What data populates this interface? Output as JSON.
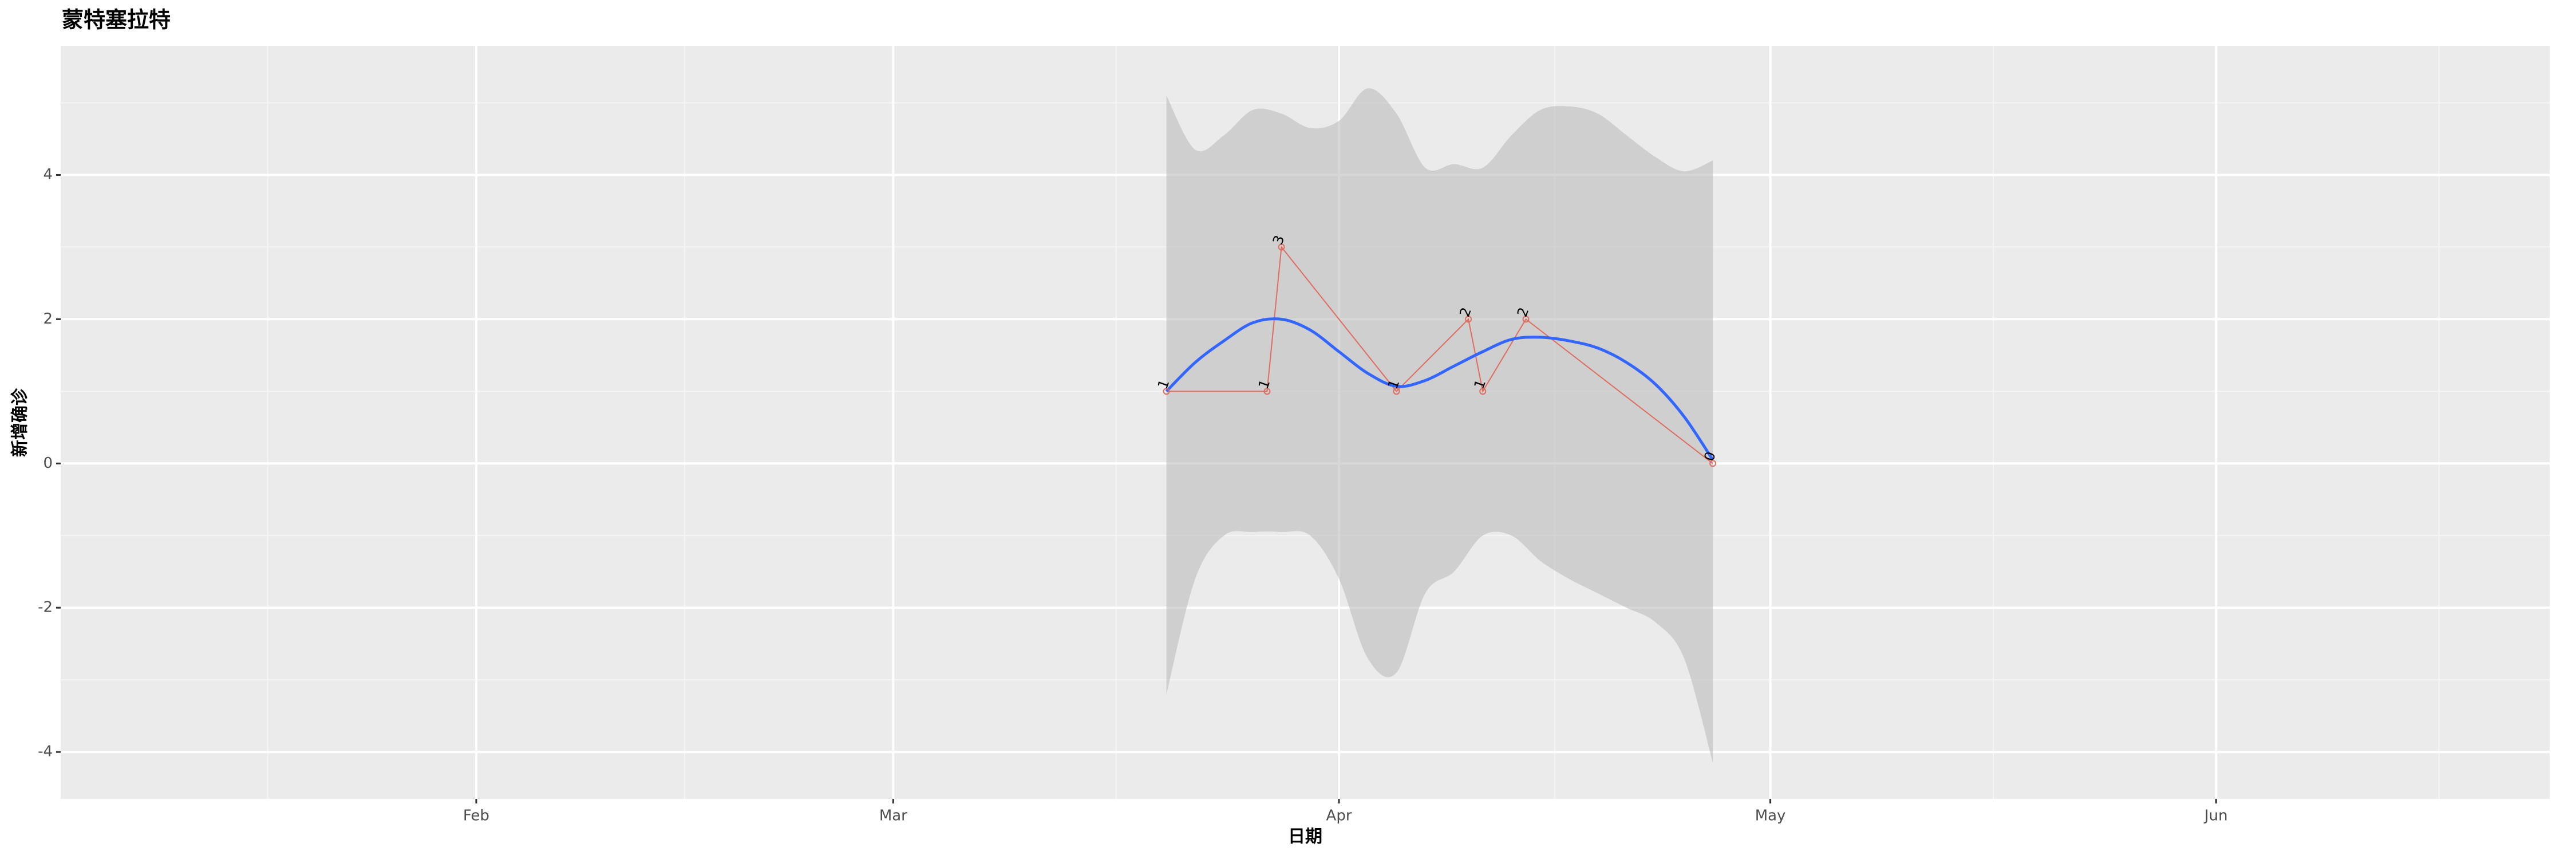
{
  "chart_data": {
    "type": "line",
    "title": "蒙特塞拉特",
    "x_label": "日期",
    "y_label": "新增确诊",
    "x": [
      79,
      86,
      87,
      95,
      100,
      101,
      104,
      117
    ],
    "values": [
      1,
      1,
      3,
      1,
      2,
      1,
      2,
      0
    ],
    "color": "#e06c60",
    "smooth": {
      "x": [
        79,
        81,
        83,
        85,
        87,
        89,
        91,
        93,
        95,
        97,
        99,
        101,
        103,
        105,
        107,
        109,
        111,
        113,
        115,
        117
      ],
      "values": [
        1.0,
        1.4,
        1.7,
        1.95,
        2.0,
        1.85,
        1.55,
        1.25,
        1.07,
        1.15,
        1.35,
        1.55,
        1.72,
        1.75,
        1.7,
        1.6,
        1.4,
        1.1,
        0.65,
        0.05
      ],
      "upper": [
        5.1,
        4.35,
        4.55,
        4.9,
        4.85,
        4.65,
        4.75,
        5.2,
        4.85,
        4.1,
        4.15,
        4.1,
        4.55,
        4.9,
        4.95,
        4.85,
        4.55,
        4.25,
        4.05,
        4.2
      ],
      "lower": [
        -3.2,
        -1.6,
        -1.0,
        -0.95,
        -0.95,
        -1.0,
        -1.6,
        -2.7,
        -2.9,
        -1.8,
        -1.5,
        -1.0,
        -1.0,
        -1.35,
        -1.6,
        -1.8,
        -2.0,
        -2.2,
        -2.7,
        -4.15
      ],
      "color": "#3366ff",
      "band_color": "#bdbdbd"
    },
    "xlim": [
      2.1,
      175.2
    ],
    "xticks": [
      {
        "value": 31,
        "label": "Feb"
      },
      {
        "value": 60,
        "label": "Mar"
      },
      {
        "value": 91,
        "label": "Apr"
      },
      {
        "value": 121,
        "label": "May"
      },
      {
        "value": 152,
        "label": "Jun"
      }
    ],
    "ylim": [
      -4.65,
      5.79
    ],
    "yticks": [
      -4,
      -2,
      0,
      2,
      4
    ],
    "grid": true
  }
}
